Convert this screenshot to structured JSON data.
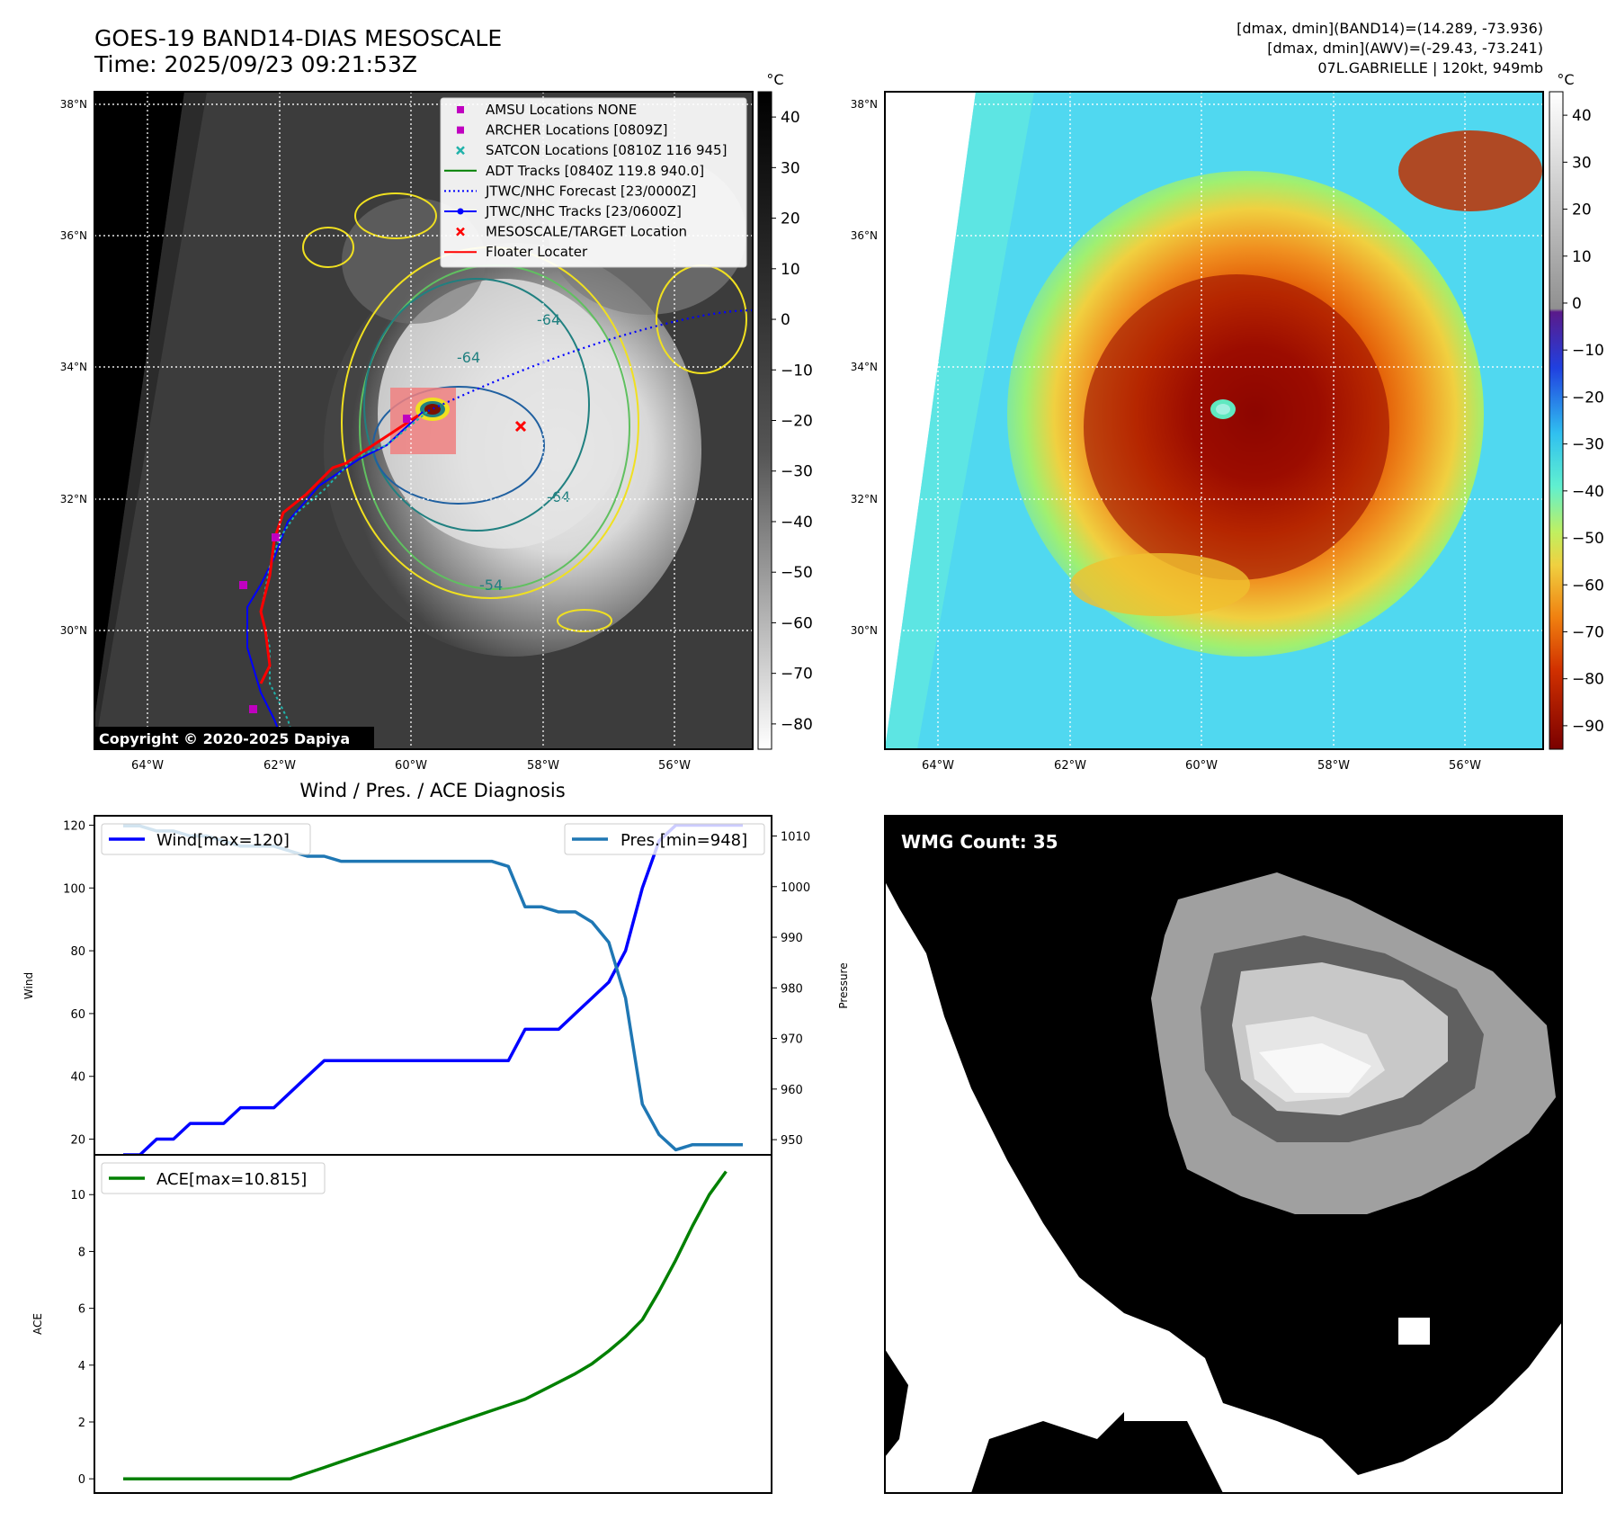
{
  "header": {
    "title_line1": "GOES-19 BAND14-DIAS MESOSCALE",
    "title_line2": "Time: 2025/09/23 09:21:53Z",
    "info_line1": "[dmax, dmin](BAND14)=(14.289, -73.936)",
    "info_line2": "[dmax, dmin](AWV)=(-29.43, -73.241)",
    "info_line3": "07L.GABRIELLE | 120kt, 949mb"
  },
  "map_left": {
    "lat_labels": [
      "38°N",
      "36°N",
      "34°N",
      "32°N",
      "30°N"
    ],
    "lon_labels": [
      "64°W",
      "62°W",
      "60°W",
      "58°W",
      "56°W"
    ],
    "contour_labels": [
      "-64",
      "-64",
      "-64",
      "-54"
    ],
    "copyright": "Copyright © 2020-2025 Dapiya",
    "colorbar_unit": "°C",
    "colorbar_ticks": [
      "40",
      "30",
      "20",
      "10",
      "0",
      "−10",
      "−20",
      "−30",
      "−40",
      "−50",
      "−60",
      "−70",
      "−80"
    ],
    "legend": [
      {
        "label": "AMSU Locations NONE",
        "marker": "square",
        "color": "#c000c0"
      },
      {
        "label": "ARCHER Locations [0809Z]",
        "marker": "square",
        "color": "#c000c0"
      },
      {
        "label": "SATCON Locations [0810Z 116 945]",
        "marker": "x",
        "color": "#20b2aa"
      },
      {
        "label": "ADT Tracks [0840Z 119.8 940.0]",
        "marker": "line",
        "color": "#008000"
      },
      {
        "label": "JTWC/NHC Forecast [23/0000Z]",
        "marker": "dotted",
        "color": "#0000ff"
      },
      {
        "label": "JTWC/NHC Tracks [23/0600Z]",
        "marker": "line-dot",
        "color": "#0000ff"
      },
      {
        "label": "MESOSCALE/TARGET Location",
        "marker": "x",
        "color": "#ff0000"
      },
      {
        "label": "Floater Locater",
        "marker": "line",
        "color": "#ff0000"
      }
    ],
    "colors": {
      "contour_yellow": "#f0e020",
      "contour_green": "#60c060",
      "contour_teal": "#208080",
      "contour_cyan": "#2060a0"
    }
  },
  "map_right": {
    "lat_labels": [
      "38°N",
      "36°N",
      "34°N",
      "32°N",
      "30°N"
    ],
    "lon_labels": [
      "64°W",
      "62°W",
      "60°W",
      "58°W",
      "56°W"
    ],
    "colorbar_unit": "°C",
    "colorbar_ticks": [
      "40",
      "30",
      "20",
      "10",
      "0",
      "−10",
      "−20",
      "−30",
      "−40",
      "−50",
      "−60",
      "−70",
      "−80",
      "−90"
    ]
  },
  "wmg": {
    "label": "WMG Count: 35"
  },
  "chart_data": [
    {
      "type": "line",
      "title": "Wind / Pres. / ACE Diagnosis",
      "ylabel": "Wind",
      "ylabel_right": "Pressure",
      "ylim": [
        15,
        123
      ],
      "ylim_right": [
        947,
        1014
      ],
      "yticks": [
        "20",
        "40",
        "60",
        "80",
        "100",
        "120"
      ],
      "yticks_right": [
        "950",
        "960",
        "970",
        "980",
        "990",
        "1000",
        "1010"
      ],
      "x": [
        0,
        1,
        2,
        3,
        4,
        5,
        6,
        7,
        8,
        9,
        10,
        11,
        12,
        13,
        14,
        15,
        16,
        17,
        18,
        19,
        20,
        21,
        22,
        23,
        24,
        25,
        26,
        27,
        28,
        29,
        30,
        31,
        32,
        33,
        34,
        35,
        36,
        37
      ],
      "series": [
        {
          "name": "Wind[max=120]",
          "color": "#0000ff",
          "values": [
            15,
            15,
            20,
            20,
            25,
            25,
            25,
            30,
            30,
            30,
            35,
            40,
            45,
            45,
            45,
            45,
            45,
            45,
            45,
            45,
            45,
            45,
            45,
            45,
            55,
            55,
            55,
            60,
            65,
            70,
            80,
            100,
            115,
            120,
            120,
            120,
            120,
            120
          ]
        },
        {
          "name": "Pres.[min=948]",
          "color": "#1f77b4",
          "axis": "right",
          "values": [
            1012,
            1012,
            1011,
            1011,
            1010,
            1010,
            1009,
            1008,
            1008,
            1008,
            1007,
            1006,
            1006,
            1005,
            1005,
            1005,
            1005,
            1005,
            1005,
            1005,
            1005,
            1005,
            1005,
            1004,
            996,
            996,
            995,
            995,
            993,
            989,
            978,
            957,
            951,
            948,
            949,
            949,
            949,
            949
          ]
        }
      ]
    },
    {
      "type": "line",
      "ylabel": "ACE",
      "ylim": [
        -0.5,
        11.4
      ],
      "yticks": [
        "0",
        "2",
        "4",
        "6",
        "8",
        "10"
      ],
      "x": [
        0,
        1,
        2,
        3,
        4,
        5,
        6,
        7,
        8,
        9,
        10,
        11,
        12,
        13,
        14,
        15,
        16,
        17,
        18,
        19,
        20,
        21,
        22,
        23,
        24,
        25,
        26,
        27,
        28,
        29,
        30,
        31,
        32,
        33,
        34,
        35,
        36,
        37
      ],
      "series": [
        {
          "name": "ACE[max=10.815]",
          "color": "#008000",
          "values": [
            0,
            0,
            0,
            0,
            0,
            0,
            0,
            0,
            0,
            0,
            0,
            0.2,
            0.4,
            0.6,
            0.8,
            1.0,
            1.2,
            1.4,
            1.6,
            1.8,
            2.0,
            2.2,
            2.4,
            2.6,
            2.8,
            3.1,
            3.4,
            3.7,
            4.05,
            4.5,
            5.0,
            5.6,
            6.6,
            7.7,
            8.9,
            10.0,
            10.815,
            10.815
          ]
        }
      ]
    }
  ]
}
